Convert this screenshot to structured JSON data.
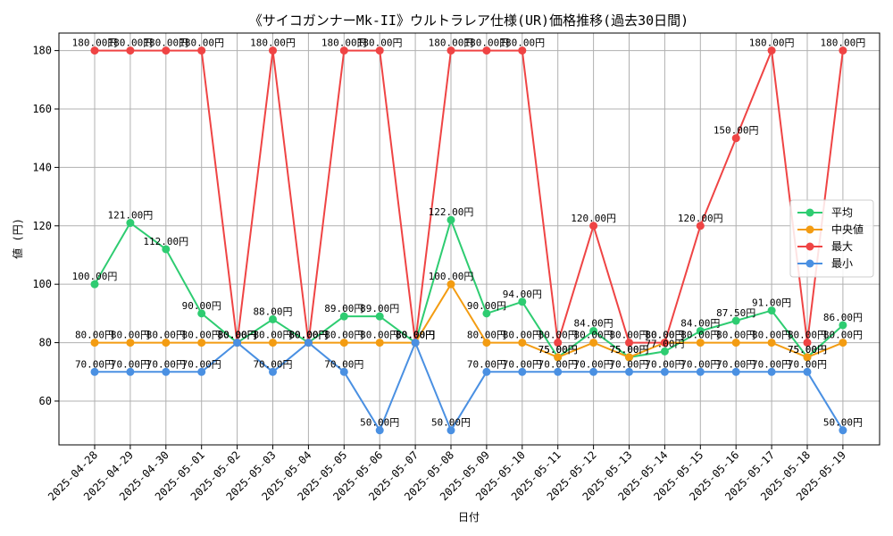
{
  "chart_data": {
    "type": "line",
    "title": "《サイコガンナーMk-II》ウルトラレア仕様(UR)価格推移(過去30日間)",
    "xlabel": "日付",
    "ylabel": "値 (円)",
    "ylim": [
      45,
      186
    ],
    "yticks": [
      60,
      80,
      100,
      120,
      140,
      160,
      180
    ],
    "grid": true,
    "legend_position": "right",
    "value_suffix": "円",
    "categories": [
      "2025-04-28",
      "2025-04-29",
      "2025-04-30",
      "2025-05-01",
      "2025-05-02",
      "2025-05-03",
      "2025-05-04",
      "2025-05-05",
      "2025-05-06",
      "2025-05-07",
      "2025-05-08",
      "2025-05-09",
      "2025-05-10",
      "2025-05-11",
      "2025-05-12",
      "2025-05-13",
      "2025-05-14",
      "2025-05-15",
      "2025-05-16",
      "2025-05-17",
      "2025-05-18",
      "2025-05-19"
    ],
    "series": [
      {
        "name": "平均",
        "color": "#2ecc71",
        "values": [
          100,
          121,
          112,
          90,
          80,
          88,
          80,
          89,
          89,
          80,
          122,
          90,
          94,
          75,
          84,
          75,
          77,
          84,
          87.5,
          91,
          75,
          86
        ]
      },
      {
        "name": "中央値",
        "color": "#f39c12",
        "values": [
          80,
          80,
          80,
          80,
          80,
          80,
          80,
          80,
          80,
          80,
          100,
          80,
          80,
          75,
          80,
          75,
          80,
          80,
          80,
          80,
          75,
          80
        ]
      },
      {
        "name": "最大",
        "color": "#ef4444",
        "values": [
          180,
          180,
          180,
          180,
          80,
          180,
          80,
          180,
          180,
          80,
          180,
          180,
          180,
          80,
          120,
          80,
          80,
          120,
          150,
          180,
          80,
          180
        ]
      },
      {
        "name": "最小",
        "color": "#4a90e2",
        "values": [
          70,
          70,
          70,
          70,
          80,
          70,
          80,
          70,
          50,
          80,
          50,
          70,
          70,
          70,
          70,
          70,
          70,
          70,
          70,
          70,
          70,
          50
        ]
      }
    ]
  }
}
